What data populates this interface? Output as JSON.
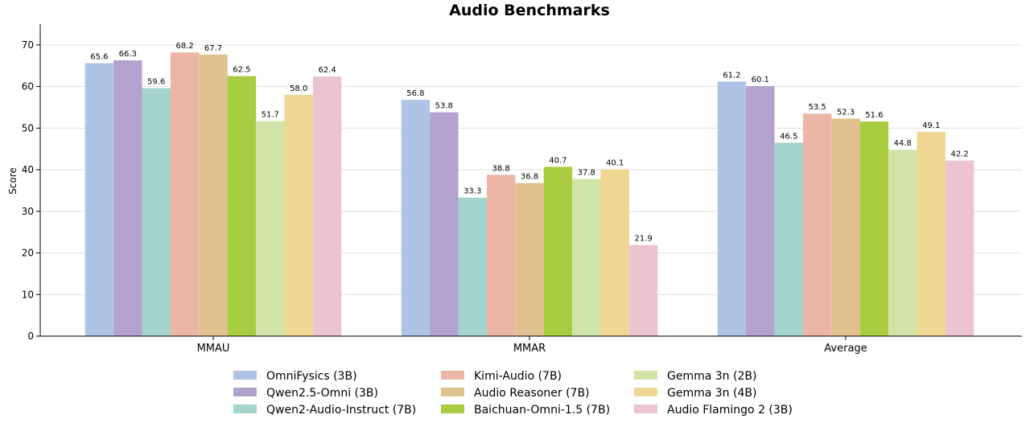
{
  "chart_data": {
    "type": "bar",
    "title": "Audio Benchmarks",
    "xlabel": "",
    "ylabel": "Score",
    "ylim": [
      0,
      75
    ],
    "yticks": [
      0,
      10,
      20,
      30,
      40,
      50,
      60,
      70
    ],
    "grid": true,
    "legend_position": "bottom",
    "categories": [
      "MMAU",
      "MMAR",
      "Average"
    ],
    "series": [
      {
        "name": "OmniFysics (3B)",
        "color": "#aec3e5",
        "values": [
          65.6,
          56.8,
          61.2
        ],
        "labels": [
          "65.6",
          "56.8",
          "61.2"
        ]
      },
      {
        "name": "Qwen2.5-Omni (3B)",
        "color": "#b3a2d0",
        "values": [
          66.3,
          53.8,
          60.1
        ],
        "labels": [
          "66.3",
          "53.8",
          "60.1"
        ]
      },
      {
        "name": "Qwen2-Audio-Instruct (7B)",
        "color": "#a3d5ce",
        "values": [
          59.6,
          33.3,
          46.5
        ],
        "labels": [
          "59.6",
          "33.3",
          "46.5"
        ]
      },
      {
        "name": "Kimi-Audio (7B)",
        "color": "#ecb6a6",
        "values": [
          68.2,
          38.8,
          53.5
        ],
        "labels": [
          "68.2",
          "38.8",
          "53.5"
        ]
      },
      {
        "name": "Audio Reasoner (7B)",
        "color": "#e1c18f",
        "values": [
          67.7,
          36.8,
          52.3
        ],
        "labels": [
          "67.7",
          "36.8",
          "52.3"
        ]
      },
      {
        "name": "Baichuan-Omni-1.5 (7B)",
        "color": "#a9cd40",
        "values": [
          62.5,
          40.7,
          51.6
        ],
        "labels": [
          "62.5",
          "40.7",
          "51.6"
        ]
      },
      {
        "name": "Gemma 3n (2B)",
        "color": "#d1e4a8",
        "values": [
          51.7,
          37.8,
          44.8
        ],
        "labels": [
          "51.7",
          "37.8",
          "44.8"
        ]
      },
      {
        "name": "Gemma 3n (4B)",
        "color": "#f0d693",
        "values": [
          58.0,
          40.1,
          49.1
        ],
        "labels": [
          "58.0",
          "40.1",
          "49.1"
        ]
      },
      {
        "name": "Audio Flamingo 2 (3B)",
        "color": "#ebc3d1",
        "values": [
          62.4,
          21.9,
          42.2
        ],
        "labels": [
          "62.4",
          "21.9",
          "42.2"
        ]
      }
    ]
  }
}
